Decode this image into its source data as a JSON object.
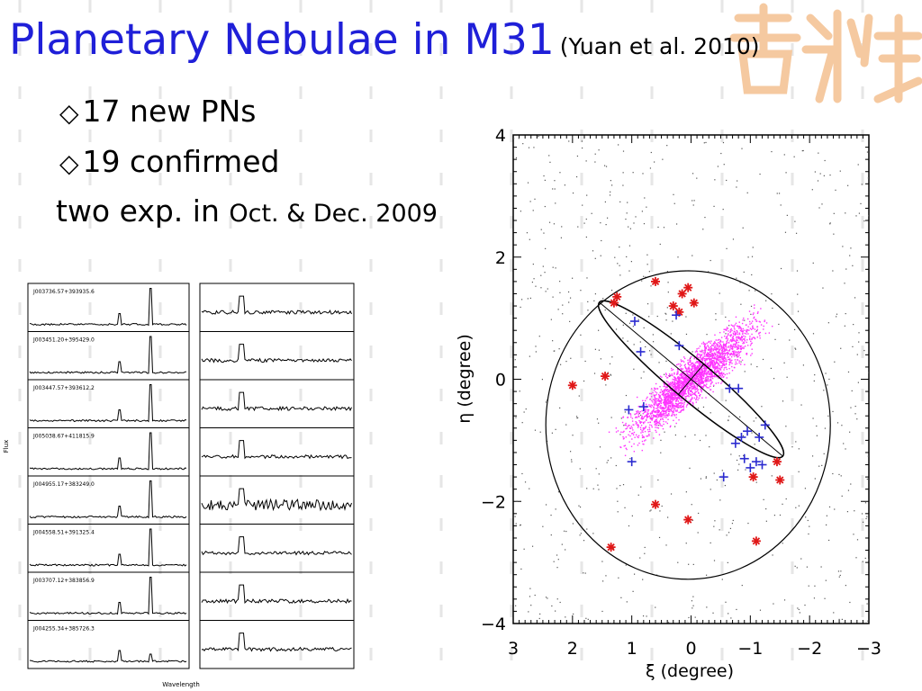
{
  "slide": {
    "title": "Planetary Nebulae in M31",
    "citation": "(Yuan et al. 2010)",
    "bullet_symbol": "◇",
    "bullets": [
      "17 new PNs",
      "19 confirmed"
    ],
    "note_prefix": "two exp. in",
    "note_dates": "Oct. & Dec. 2009",
    "colors": {
      "title": "#1f1fd8",
      "logo": "#f5c9a0",
      "known_pn_marker": "#2a2ad0",
      "new_pn_marker": "#e01818",
      "disk_points": "#ff33ff"
    }
  },
  "chart_data": [
    {
      "type": "scatter",
      "xlabel": "ξ (degree)",
      "ylabel": "η (degree)",
      "xlim": [
        3,
        -3
      ],
      "ylim": [
        -4,
        4
      ],
      "x_ticks": [
        "3",
        "2",
        "1",
        "0",
        "−1",
        "−2",
        "−3"
      ],
      "y_ticks": [
        "4",
        "2",
        "0",
        "−2",
        "−4"
      ],
      "series": [
        {
          "marker": "star",
          "color": "#e01818",
          "points": [
            [
              1.25,
              1.35
            ],
            [
              1.3,
              1.25
            ],
            [
              0.6,
              1.6
            ],
            [
              0.05,
              1.5
            ],
            [
              0.15,
              1.4
            ],
            [
              0.3,
              1.2
            ],
            [
              -0.05,
              1.25
            ],
            [
              2.0,
              -0.1
            ],
            [
              1.45,
              0.05
            ],
            [
              0.6,
              -2.05
            ],
            [
              0.05,
              -2.3
            ],
            [
              1.35,
              -2.75
            ],
            [
              -1.05,
              -1.6
            ],
            [
              -1.45,
              -1.35
            ],
            [
              -1.5,
              -1.65
            ],
            [
              -1.1,
              -2.65
            ],
            [
              0.2,
              1.1
            ]
          ]
        },
        {
          "marker": "plus",
          "color": "#2a2ad0",
          "points": [
            [
              0.95,
              0.95
            ],
            [
              0.85,
              0.45
            ],
            [
              0.25,
              1.05
            ],
            [
              0.2,
              0.55
            ],
            [
              1.05,
              -0.5
            ],
            [
              0.8,
              -0.45
            ],
            [
              -0.65,
              -0.15
            ],
            [
              -0.8,
              -0.15
            ],
            [
              -0.95,
              -0.85
            ],
            [
              -0.85,
              -0.95
            ],
            [
              -1.25,
              -0.75
            ],
            [
              -1.15,
              -0.95
            ],
            [
              -0.9,
              -1.3
            ],
            [
              -1.0,
              -1.45
            ],
            [
              -1.1,
              -1.35
            ],
            [
              1.0,
              -1.35
            ],
            [
              -0.55,
              -1.6
            ],
            [
              -1.2,
              -1.4
            ],
            [
              -0.75,
              -1.05
            ]
          ]
        }
      ]
    },
    {
      "type": "line",
      "xlabel": "Wavelength",
      "ylabel": "Flux",
      "panels": [
        {
          "id": "J003736.57+393935.6"
        },
        {
          "id": "J003451.20+395429.0"
        },
        {
          "id": "J003447.57+393612.2"
        },
        {
          "id": "J005038.67+411815.9"
        },
        {
          "id": "J004955.17+383249.0"
        },
        {
          "id": "J004558.51+391325.4"
        },
        {
          "id": "J003707.12+383856.9"
        },
        {
          "id": "J004255.34+385726.3"
        }
      ]
    }
  ]
}
